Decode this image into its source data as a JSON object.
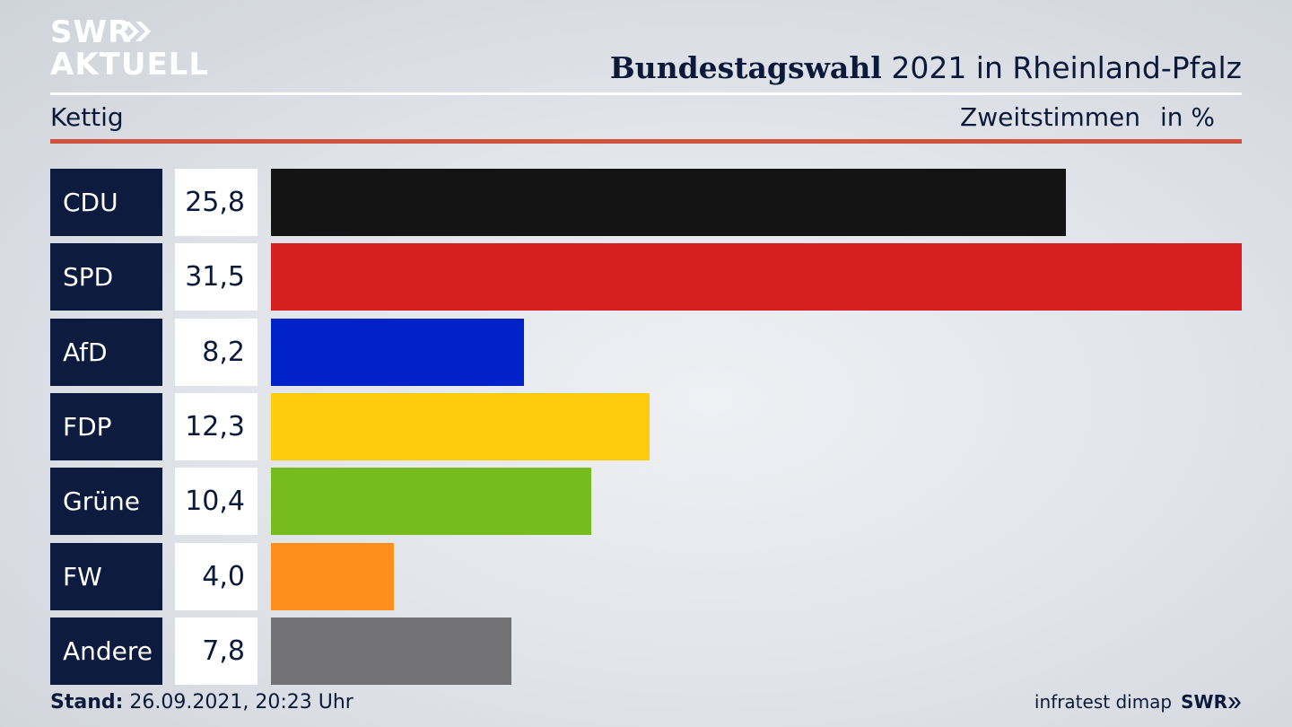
{
  "logo": {
    "line1": "SWR",
    "line2": "AKTUELL"
  },
  "title": {
    "bold": "Bundestagswahl",
    "rest": " 2021 in Rheinland-Pfalz"
  },
  "subtitle": {
    "place": "Kettig",
    "measure": "Zweitstimmen",
    "unit": "in %"
  },
  "colors": {
    "accent_line": "#d0533d",
    "label_bg": "#0d1b3e"
  },
  "chart_data": {
    "type": "bar",
    "orientation": "horizontal",
    "categories": [
      "CDU",
      "SPD",
      "AfD",
      "FDP",
      "Grüne",
      "FW",
      "Andere"
    ],
    "values": [
      25.8,
      31.5,
      8.2,
      12.3,
      10.4,
      4.0,
      7.8
    ],
    "value_labels": [
      "25,8",
      "31,5",
      "8,2",
      "12,3",
      "10,4",
      "4,0",
      "7,8"
    ],
    "colors": [
      "#141414",
      "#d62020",
      "#0022c8",
      "#fdcc0d",
      "#77bc1f",
      "#fd8f1a",
      "#727275"
    ],
    "xlim": [
      0,
      31.5
    ],
    "grid": false,
    "legend": "none"
  },
  "footer": {
    "stand_label": "Stand:",
    "stand_value": " 26.09.2021, 20:23 Uhr",
    "source": "infratest dimap",
    "brand": "SWR"
  }
}
